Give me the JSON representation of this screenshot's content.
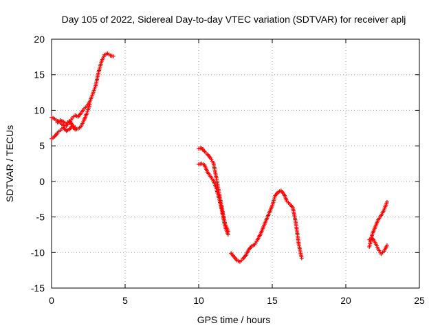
{
  "chart_data": {
    "type": "scatter",
    "title": "Day 105 of 2022, Sidereal Day-to-day VTEC variation (SDTVAR) for receiver aplj",
    "xlabel": "GPS time / hours",
    "ylabel": "SDTVAR / TECUs",
    "xlim": [
      0,
      25
    ],
    "ylim": [
      -15,
      20
    ],
    "xticks": [
      0,
      5,
      10,
      15,
      20,
      25
    ],
    "yticks": [
      -15,
      -10,
      -5,
      0,
      5,
      10,
      15,
      20
    ],
    "grid": true,
    "marker": "+",
    "color": "#ff0000",
    "series": [
      {
        "name": "segment-1-upper",
        "x": [
          0.0,
          0.2,
          0.4,
          0.6,
          0.8,
          1.0,
          1.2,
          1.4,
          1.6,
          1.8,
          2.0,
          2.2,
          2.4,
          2.6,
          2.8,
          3.0,
          3.2,
          3.4,
          3.6,
          3.8,
          4.0,
          4.2
        ],
        "y": [
          9.0,
          8.8,
          8.5,
          8.2,
          7.9,
          7.8,
          8.2,
          8.9,
          9.3,
          9.1,
          9.6,
          10.2,
          10.6,
          11.2,
          12.3,
          13.5,
          15.4,
          16.9,
          17.8,
          18.0,
          17.7,
          17.6
        ]
      },
      {
        "name": "segment-1-lower",
        "x": [
          0.0,
          0.2,
          0.4,
          0.6,
          0.8,
          1.0,
          1.2,
          1.4,
          1.6,
          1.8,
          2.0,
          2.2,
          2.4,
          2.6
        ],
        "y": [
          6.0,
          6.3,
          6.8,
          7.2,
          7.6,
          7.1,
          7.3,
          7.8,
          7.3,
          7.4,
          7.7,
          8.6,
          9.6,
          10.8
        ]
      },
      {
        "name": "segment-1-mid",
        "x": [
          0.4,
          0.6,
          0.8,
          1.0,
          1.2,
          1.4,
          1.6
        ],
        "y": [
          8.3,
          8.6,
          8.4,
          8.1,
          8.5,
          8.0,
          7.6
        ]
      },
      {
        "name": "segment-2-upper",
        "x": [
          10.0,
          10.2,
          10.4,
          10.6,
          10.8,
          11.0,
          11.2,
          11.4,
          11.6,
          11.8,
          12.0
        ],
        "y": [
          4.6,
          4.7,
          4.2,
          3.8,
          3.3,
          2.6,
          0.5,
          -1.8,
          -4.0,
          -6.0,
          -7.0
        ]
      },
      {
        "name": "segment-2-lower",
        "x": [
          10.0,
          10.2,
          10.4,
          10.6,
          10.8,
          11.0,
          11.2,
          11.4,
          11.6,
          11.8,
          12.0
        ],
        "y": [
          2.4,
          2.5,
          2.3,
          1.3,
          0.7,
          0.1,
          -1.0,
          -2.5,
          -4.3,
          -6.4,
          -7.5
        ]
      },
      {
        "name": "segment-3",
        "x": [
          12.2,
          12.4,
          12.6,
          12.8,
          13.0,
          13.2,
          13.4,
          13.6,
          13.8,
          14.0,
          14.2,
          14.4,
          14.6,
          14.8,
          15.0,
          15.2,
          15.4,
          15.6,
          15.8,
          16.0,
          16.2,
          16.4,
          16.6,
          16.8,
          17.0
        ],
        "y": [
          -10.1,
          -10.6,
          -11.1,
          -11.3,
          -10.9,
          -10.4,
          -9.6,
          -9.1,
          -8.9,
          -8.2,
          -7.4,
          -6.4,
          -5.4,
          -4.4,
          -3.4,
          -2.0,
          -1.5,
          -1.3,
          -1.8,
          -2.8,
          -3.2,
          -3.7,
          -5.8,
          -8.8,
          -10.8
        ]
      },
      {
        "name": "segment-4-lower",
        "x": [
          21.6,
          21.8,
          22.0,
          22.2,
          22.4,
          22.6,
          22.8
        ],
        "y": [
          -8.2,
          -8.0,
          -8.6,
          -9.5,
          -10.2,
          -9.8,
          -9.0
        ]
      },
      {
        "name": "segment-4-upper",
        "x": [
          21.6,
          21.8,
          22.0,
          22.2,
          22.4,
          22.6,
          22.8
        ],
        "y": [
          -9.2,
          -7.4,
          -6.4,
          -5.4,
          -4.8,
          -4.0,
          -2.9
        ]
      }
    ]
  }
}
